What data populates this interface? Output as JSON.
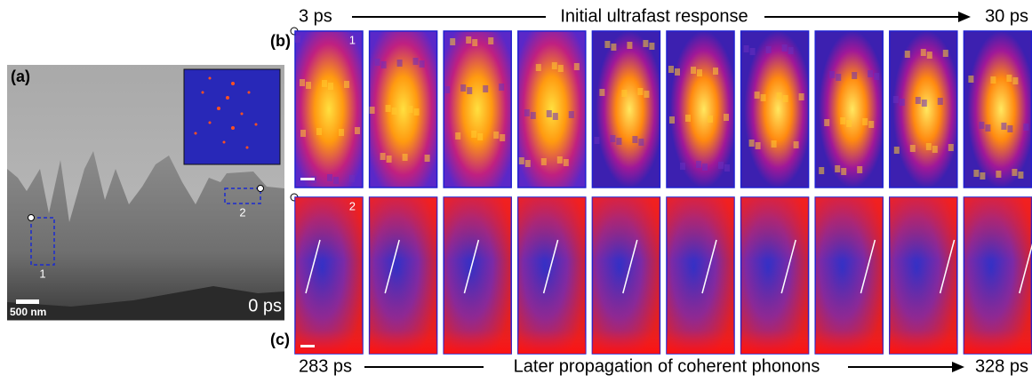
{
  "panel_a": {
    "label": "(a)",
    "scale_bar": "500 nm",
    "time": "0 ps",
    "regions": [
      "1",
      "2"
    ]
  },
  "panel_b": {
    "label": "(b)",
    "start": "3 ps",
    "caption": "Initial ultrafast response",
    "end": "30 ps",
    "region": "1"
  },
  "panel_c": {
    "label": "(c)",
    "start": "283 ps",
    "caption": "Later propagation of coherent phonons",
    "end": "328 ps",
    "region": "2"
  }
}
